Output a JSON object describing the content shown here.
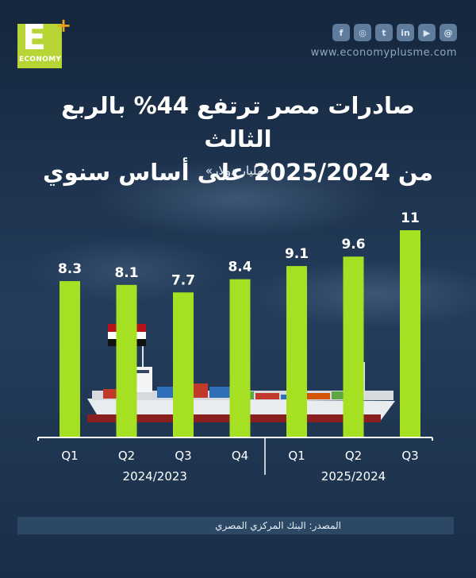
{
  "brand": {
    "logo_letter": "E",
    "logo_plus": "+",
    "logo_word": "ECONOMY",
    "website": "www.economyplusme.com"
  },
  "social_icons": [
    "facebook-icon",
    "instagram-icon",
    "twitter-icon",
    "linkedin-icon",
    "youtube-icon",
    "threads-icon"
  ],
  "header": {
    "title_line1": "صادرات مصر ترتفع 44% بالربع الثالث",
    "title_line2": "من 2025/2024 على أساس سنوي",
    "subtitle": "«مليار دولار»"
  },
  "source_text": "المصدر: البنك المركزي المصري",
  "colors": {
    "bar": "#a5e022",
    "background": "#1d3350"
  },
  "chart_data": {
    "type": "bar",
    "categories": [
      "Q1",
      "Q2",
      "Q3",
      "Q4",
      "Q1",
      "Q2",
      "Q3"
    ],
    "values": [
      8.3,
      8.1,
      7.7,
      8.4,
      9.1,
      9.6,
      11
    ],
    "value_labels": [
      "8.3",
      "8.1",
      "7.7",
      "8.4",
      "9.1",
      "9.6",
      "11"
    ],
    "groups": [
      {
        "label": "2024/2023",
        "count": 4
      },
      {
        "label": "2025/2024",
        "count": 3
      }
    ],
    "title": "صادرات مصر ترتفع 44% بالربع الثالث من 2025/2024 على أساس سنوي",
    "ylabel": "«مليار دولار»",
    "ylim": [
      0,
      11
    ]
  }
}
